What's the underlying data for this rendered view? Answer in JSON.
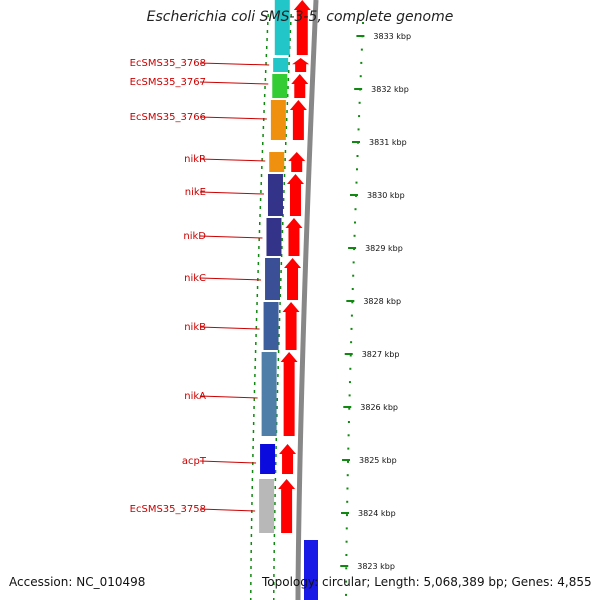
{
  "title": "Escherichia coli SMS-3-5, complete genome",
  "footer": {
    "accession": "Accession: NC_010498",
    "topology": "Topology: circular; Length: 5,068,389 bp; Genes: 4,855"
  },
  "colors": {
    "label_red": "#cc0000",
    "forward_arrow": "#ff0000",
    "tick_green": "#118811",
    "backbone": "#888888"
  },
  "scale_ticks": [
    "3833 kbp",
    "3832 kbp",
    "3831 kbp",
    "3830 kbp",
    "3829 kbp",
    "3828 kbp",
    "3827 kbp",
    "3826 kbp",
    "3825 kbp",
    "3824 kbp",
    "3823 kbp"
  ],
  "genes": [
    {
      "label": "",
      "color": "#22c5c8"
    },
    {
      "label": "EcSMS35_3768",
      "color": "#22c5c8"
    },
    {
      "label": "EcSMS35_3767",
      "color": "#33cc33"
    },
    {
      "label": "EcSMS35_3766",
      "color": "#f0900f"
    },
    {
      "label": "nikR",
      "color": "#f0900f"
    },
    {
      "label": "nikE",
      "color": "#33338a"
    },
    {
      "label": "nikD",
      "color": "#33338a"
    },
    {
      "label": "nikC",
      "color": "#3a4f96"
    },
    {
      "label": "nikB",
      "color": "#3d5e9d"
    },
    {
      "label": "nikA",
      "color": "#4f7fa8"
    },
    {
      "label": "acpT",
      "color": "#0b0bdd"
    },
    {
      "label": "EcSMS35_3758",
      "color": "#b8b8b8"
    }
  ],
  "reverse_gene_color": "#1a1ae6"
}
